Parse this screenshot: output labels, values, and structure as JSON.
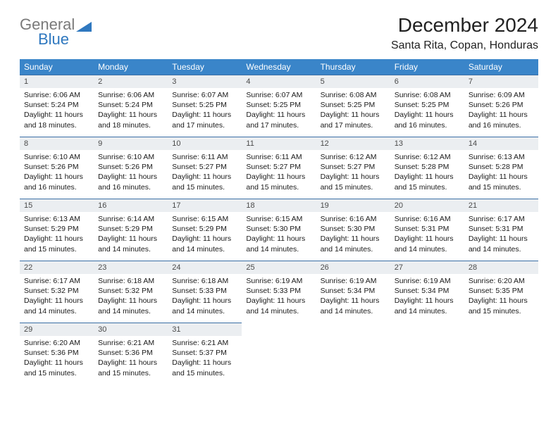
{
  "brand": {
    "word1": "General",
    "word2": "Blue"
  },
  "title": "December 2024",
  "location": "Santa Rita, Copan, Honduras",
  "colors": {
    "header_bg": "#3a85c9",
    "header_fg": "#ffffff",
    "daynum_bg": "#ebeef1",
    "rule": "#3a6ea5",
    "logo_gray": "#7a7a7a",
    "logo_blue": "#2f78bf"
  },
  "day_headers": [
    "Sunday",
    "Monday",
    "Tuesday",
    "Wednesday",
    "Thursday",
    "Friday",
    "Saturday"
  ],
  "weeks": [
    [
      {
        "n": "1",
        "sr": "6:06 AM",
        "ss": "5:24 PM",
        "dl": "11 hours and 18 minutes."
      },
      {
        "n": "2",
        "sr": "6:06 AM",
        "ss": "5:24 PM",
        "dl": "11 hours and 18 minutes."
      },
      {
        "n": "3",
        "sr": "6:07 AM",
        "ss": "5:25 PM",
        "dl": "11 hours and 17 minutes."
      },
      {
        "n": "4",
        "sr": "6:07 AM",
        "ss": "5:25 PM",
        "dl": "11 hours and 17 minutes."
      },
      {
        "n": "5",
        "sr": "6:08 AM",
        "ss": "5:25 PM",
        "dl": "11 hours and 17 minutes."
      },
      {
        "n": "6",
        "sr": "6:08 AM",
        "ss": "5:25 PM",
        "dl": "11 hours and 16 minutes."
      },
      {
        "n": "7",
        "sr": "6:09 AM",
        "ss": "5:26 PM",
        "dl": "11 hours and 16 minutes."
      }
    ],
    [
      {
        "n": "8",
        "sr": "6:10 AM",
        "ss": "5:26 PM",
        "dl": "11 hours and 16 minutes."
      },
      {
        "n": "9",
        "sr": "6:10 AM",
        "ss": "5:26 PM",
        "dl": "11 hours and 16 minutes."
      },
      {
        "n": "10",
        "sr": "6:11 AM",
        "ss": "5:27 PM",
        "dl": "11 hours and 15 minutes."
      },
      {
        "n": "11",
        "sr": "6:11 AM",
        "ss": "5:27 PM",
        "dl": "11 hours and 15 minutes."
      },
      {
        "n": "12",
        "sr": "6:12 AM",
        "ss": "5:27 PM",
        "dl": "11 hours and 15 minutes."
      },
      {
        "n": "13",
        "sr": "6:12 AM",
        "ss": "5:28 PM",
        "dl": "11 hours and 15 minutes."
      },
      {
        "n": "14",
        "sr": "6:13 AM",
        "ss": "5:28 PM",
        "dl": "11 hours and 15 minutes."
      }
    ],
    [
      {
        "n": "15",
        "sr": "6:13 AM",
        "ss": "5:29 PM",
        "dl": "11 hours and 15 minutes."
      },
      {
        "n": "16",
        "sr": "6:14 AM",
        "ss": "5:29 PM",
        "dl": "11 hours and 14 minutes."
      },
      {
        "n": "17",
        "sr": "6:15 AM",
        "ss": "5:29 PM",
        "dl": "11 hours and 14 minutes."
      },
      {
        "n": "18",
        "sr": "6:15 AM",
        "ss": "5:30 PM",
        "dl": "11 hours and 14 minutes."
      },
      {
        "n": "19",
        "sr": "6:16 AM",
        "ss": "5:30 PM",
        "dl": "11 hours and 14 minutes."
      },
      {
        "n": "20",
        "sr": "6:16 AM",
        "ss": "5:31 PM",
        "dl": "11 hours and 14 minutes."
      },
      {
        "n": "21",
        "sr": "6:17 AM",
        "ss": "5:31 PM",
        "dl": "11 hours and 14 minutes."
      }
    ],
    [
      {
        "n": "22",
        "sr": "6:17 AM",
        "ss": "5:32 PM",
        "dl": "11 hours and 14 minutes."
      },
      {
        "n": "23",
        "sr": "6:18 AM",
        "ss": "5:32 PM",
        "dl": "11 hours and 14 minutes."
      },
      {
        "n": "24",
        "sr": "6:18 AM",
        "ss": "5:33 PM",
        "dl": "11 hours and 14 minutes."
      },
      {
        "n": "25",
        "sr": "6:19 AM",
        "ss": "5:33 PM",
        "dl": "11 hours and 14 minutes."
      },
      {
        "n": "26",
        "sr": "6:19 AM",
        "ss": "5:34 PM",
        "dl": "11 hours and 14 minutes."
      },
      {
        "n": "27",
        "sr": "6:19 AM",
        "ss": "5:34 PM",
        "dl": "11 hours and 14 minutes."
      },
      {
        "n": "28",
        "sr": "6:20 AM",
        "ss": "5:35 PM",
        "dl": "11 hours and 15 minutes."
      }
    ],
    [
      {
        "n": "29",
        "sr": "6:20 AM",
        "ss": "5:36 PM",
        "dl": "11 hours and 15 minutes."
      },
      {
        "n": "30",
        "sr": "6:21 AM",
        "ss": "5:36 PM",
        "dl": "11 hours and 15 minutes."
      },
      {
        "n": "31",
        "sr": "6:21 AM",
        "ss": "5:37 PM",
        "dl": "11 hours and 15 minutes."
      },
      null,
      null,
      null,
      null
    ]
  ],
  "labels": {
    "sunrise": "Sunrise:",
    "sunset": "Sunset:",
    "daylight": "Daylight:"
  }
}
